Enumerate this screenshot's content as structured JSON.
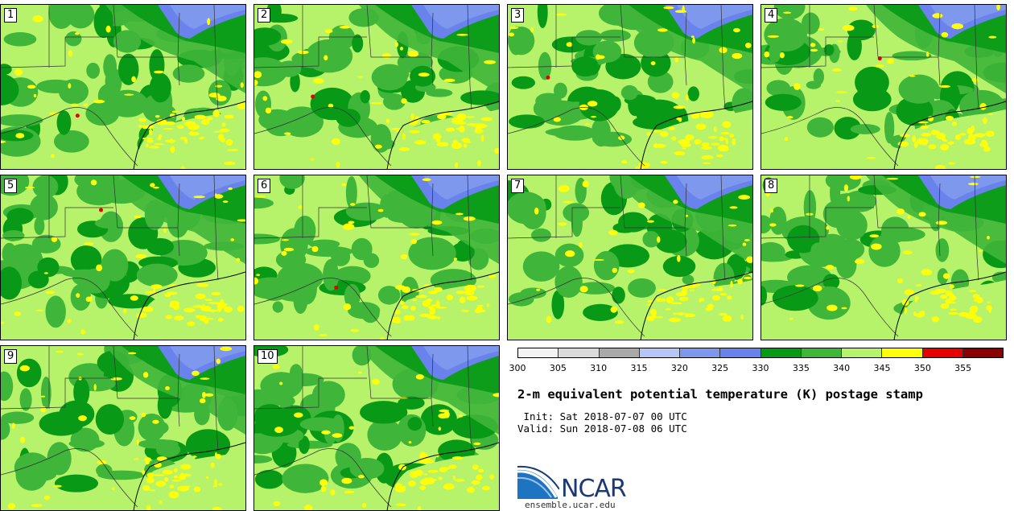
{
  "panels": [
    {
      "label": "1"
    },
    {
      "label": "2"
    },
    {
      "label": "3"
    },
    {
      "label": "4"
    },
    {
      "label": "5"
    },
    {
      "label": "6"
    },
    {
      "label": "7"
    },
    {
      "label": "8"
    },
    {
      "label": "9"
    },
    {
      "label": "10"
    }
  ],
  "colorbar": {
    "colors": [
      "#f2f2f2",
      "#dadada",
      "#a9a9a9",
      "#b6c7f7",
      "#7e98ee",
      "#6a82ec",
      "#089a16",
      "#3fb53a",
      "#b6f36a",
      "#ffff0a",
      "#e60000",
      "#8b0000"
    ],
    "ticks": [
      "300",
      "305",
      "310",
      "315",
      "320",
      "325",
      "330",
      "335",
      "340",
      "345",
      "350",
      "355"
    ]
  },
  "title": "2-m equivalent potential temperature (K) postage stamp",
  "init": " Init: Sat 2018-07-07 00 UTC",
  "valid": "Valid: Sun 2018-07-08 06 UTC",
  "logo": {
    "text": "NCAR",
    "site": "ensemble.ucar.edu"
  }
}
